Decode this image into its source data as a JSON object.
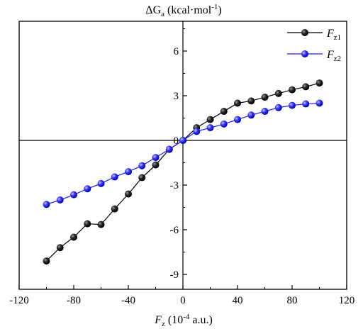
{
  "chart_data": {
    "type": "line",
    "title": "",
    "ylabel": {
      "prefix": "ΔG",
      "sub": "a",
      "unit": " (kcal·mol",
      "sup": "-1",
      "close": ")"
    },
    "xlabel": {
      "var": "F",
      "sub": "z",
      "unit": " (10",
      "sup": "-4",
      "rest": " a.u.)"
    },
    "xlim": [
      -120,
      120
    ],
    "ylim": [
      -10,
      8
    ],
    "xticks": [
      -120,
      -80,
      -40,
      0,
      40,
      80,
      120
    ],
    "yticks": [
      -9,
      -6,
      -3,
      0,
      3,
      6
    ],
    "grid": false,
    "legend_position": "top-right",
    "series": [
      {
        "name": "F",
        "name_sub": "z1",
        "color": "#000000",
        "marker": "black-sphere",
        "x": [
          -100,
          -90,
          -80,
          -70,
          -60,
          -50,
          -40,
          -30,
          -20,
          -10,
          0,
          10,
          20,
          30,
          40,
          50,
          60,
          70,
          80,
          90,
          100
        ],
        "y": [
          -8.1,
          -7.2,
          -6.5,
          -5.6,
          -5.65,
          -4.6,
          -3.6,
          -2.5,
          -1.65,
          -0.6,
          0.0,
          0.85,
          1.4,
          1.95,
          2.5,
          2.65,
          2.9,
          3.15,
          3.4,
          3.6,
          3.85
        ]
      },
      {
        "name": "F",
        "name_sub": "z2",
        "color": "#1a1aff",
        "marker": "blue-sphere",
        "x": [
          -100,
          -90,
          -80,
          -70,
          -60,
          -50,
          -40,
          -30,
          -20,
          -10,
          0,
          10,
          20,
          30,
          40,
          50,
          60,
          70,
          80,
          90,
          100
        ],
        "y": [
          -4.3,
          -4.0,
          -3.65,
          -3.25,
          -2.9,
          -2.45,
          -2.1,
          -1.7,
          -1.15,
          -0.6,
          0.0,
          0.6,
          0.85,
          1.1,
          1.4,
          1.7,
          1.95,
          2.2,
          2.35,
          2.45,
          2.5
        ]
      }
    ]
  }
}
